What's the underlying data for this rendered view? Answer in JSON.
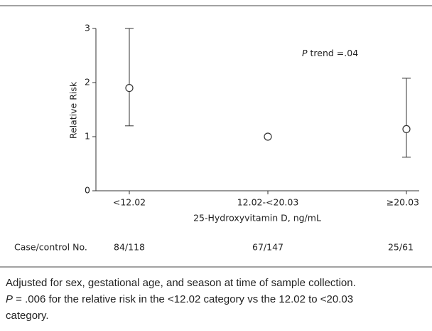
{
  "chart_data": {
    "type": "errorbar",
    "ylabel": "Relative Risk",
    "xlabel": "25-Hydroxyvitamin D, ng/mL",
    "categories": [
      "<12.02",
      "12.02-<20.03",
      "≥20.03"
    ],
    "series": [
      {
        "values": [
          1.9,
          1.0,
          1.14
        ],
        "lower": [
          1.2,
          null,
          0.62
        ],
        "upper": [
          3.0,
          null,
          2.08
        ]
      }
    ],
    "ylim": [
      0,
      3
    ],
    "yticks": [
      0,
      1,
      2,
      3
    ],
    "grid": false,
    "annotation": {
      "italic": "P",
      "text": " trend =.04"
    },
    "row_label": "Case/control No.",
    "row_values": [
      "84/118",
      "67/147",
      "25/61"
    ]
  },
  "footnotes": [
    {
      "text": "Adjusted for sex, gestational age, and season at time of sample collection."
    },
    {
      "italic": "P",
      "text": " = .006 for the relative risk in the <12.02 category vs the 12.02 to <20.03"
    },
    {
      "text": "category."
    }
  ]
}
